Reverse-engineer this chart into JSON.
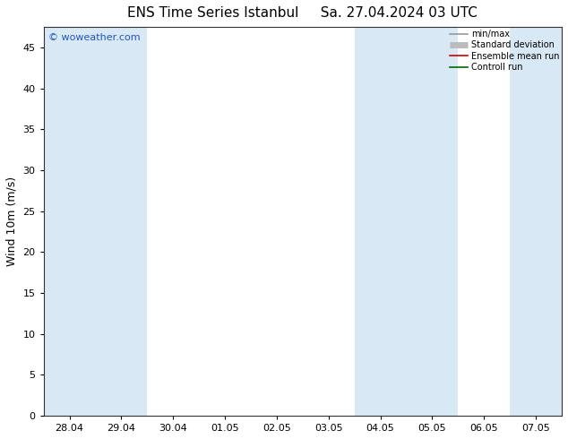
{
  "title_left": "ENS Time Series Istanbul",
  "title_right": "Sa. 27.04.2024 03 UTC",
  "ylabel": "Wind 10m (m/s)",
  "ylim": [
    0,
    47.5
  ],
  "yticks": [
    0,
    5,
    10,
    15,
    20,
    25,
    30,
    35,
    40,
    45
  ],
  "xtick_labels": [
    "28.04",
    "29.04",
    "30.04",
    "01.05",
    "02.05",
    "03.05",
    "04.05",
    "05.05",
    "06.05",
    "07.05"
  ],
  "xtick_positions": [
    0,
    1,
    2,
    3,
    4,
    5,
    6,
    7,
    8,
    9
  ],
  "xlim": [
    -0.5,
    9.5
  ],
  "band_color": "#d8e8f5",
  "shaded_cols": [
    [
      -0.5,
      0.5
    ],
    [
      0.5,
      1.5
    ],
    [
      5.5,
      6.5
    ],
    [
      6.5,
      7.5
    ],
    [
      8.5,
      9.5
    ]
  ],
  "watermark": "© woweather.com",
  "watermark_color": "#2255bb",
  "watermark_fontsize": 8,
  "legend_labels": [
    "min/max",
    "Standard deviation",
    "Ensemble mean run",
    "Controll run"
  ],
  "legend_colors": [
    "#999999",
    "#bbbbbb",
    "#cc0000",
    "#006600"
  ],
  "background_color": "#ffffff",
  "plot_bg_color": "#ffffff",
  "title_fontsize": 11,
  "axis_label_fontsize": 9,
  "tick_fontsize": 8
}
